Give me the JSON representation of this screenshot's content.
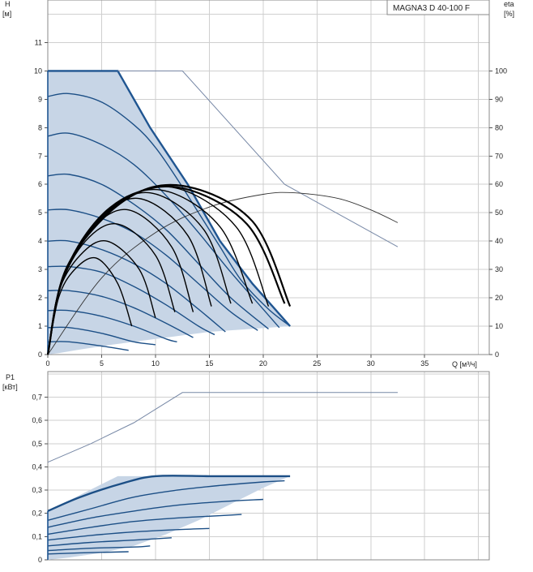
{
  "title": "MAGNA3 D 40-100 F",
  "colors": {
    "envelope_fill": "#c7d5e6",
    "envelope_line": "#1f5591",
    "curve_blue": "#1c4f86",
    "curve_black": "#000000",
    "thin_line": "#7788a6",
    "eta_line": "#333333",
    "grid": "#cfcfcf"
  },
  "chart_data": [
    {
      "type": "line",
      "name": "head",
      "ylabel": "H",
      "yunit": "[м]",
      "y2label": "eta",
      "y2unit": "[%]",
      "xlabel": "Q [м³/ч]",
      "xlim": [
        0,
        41
      ],
      "ylim": [
        0,
        12.5
      ],
      "y2lim": [
        0,
        125
      ],
      "xticks": [
        0,
        5,
        10,
        15,
        20,
        25,
        30,
        35
      ],
      "yticks": [
        0,
        1,
        2,
        3,
        4,
        5,
        6,
        7,
        8,
        9,
        10,
        11
      ],
      "y2ticks": [
        0,
        10,
        20,
        30,
        40,
        50,
        60,
        70,
        80,
        90,
        100
      ],
      "envelope": {
        "x": [
          0,
          6.5,
          9.5,
          13,
          16,
          19,
          22.5,
          15,
          10,
          6,
          3,
          1,
          0
        ],
        "y": [
          10,
          10,
          8,
          6,
          4,
          2.5,
          1,
          0.8,
          0.55,
          0.35,
          0.18,
          0.05,
          0
        ]
      },
      "head_curves": [
        {
          "x": [
            0,
            2,
            5,
            8,
            10,
            12,
            14,
            16,
            18,
            20.5,
            22.5
          ],
          "y": [
            9.1,
            9.2,
            8.9,
            8.1,
            7.3,
            6.2,
            5.0,
            3.8,
            2.6,
            1.6,
            1.0
          ]
        },
        {
          "x": [
            0,
            2,
            5,
            8,
            11,
            14,
            17,
            20,
            21.5
          ],
          "y": [
            7.7,
            7.8,
            7.4,
            6.7,
            5.6,
            4.3,
            2.9,
            1.6,
            0.95
          ]
        },
        {
          "x": [
            0,
            2,
            5,
            8,
            11,
            14,
            17,
            20.5
          ],
          "y": [
            6.3,
            6.35,
            6.0,
            5.3,
            4.4,
            3.2,
            2.0,
            0.9
          ]
        },
        {
          "x": [
            0,
            2,
            5,
            8,
            11,
            14,
            17,
            19.5
          ],
          "y": [
            5.1,
            5.1,
            4.8,
            4.3,
            3.5,
            2.5,
            1.5,
            0.85
          ]
        },
        {
          "x": [
            0,
            2,
            5,
            8,
            11,
            14,
            16.5
          ],
          "y": [
            4.0,
            4.0,
            3.7,
            3.2,
            2.5,
            1.6,
            0.8
          ]
        },
        {
          "x": [
            0,
            2,
            5,
            8,
            11,
            14,
            15.5
          ],
          "y": [
            3.1,
            3.1,
            2.9,
            2.4,
            1.75,
            1.0,
            0.7
          ]
        },
        {
          "x": [
            0,
            2,
            5,
            8,
            11,
            13.5
          ],
          "y": [
            2.25,
            2.25,
            2.05,
            1.65,
            1.1,
            0.6
          ]
        },
        {
          "x": [
            0,
            2,
            5,
            8,
            11,
            12
          ],
          "y": [
            1.55,
            1.55,
            1.35,
            1.0,
            0.55,
            0.45
          ]
        },
        {
          "x": [
            0,
            2,
            5,
            8,
            10
          ],
          "y": [
            0.95,
            0.95,
            0.75,
            0.45,
            0.35
          ]
        },
        {
          "x": [
            0,
            2,
            5,
            7.5
          ],
          "y": [
            0.45,
            0.45,
            0.3,
            0.15
          ]
        }
      ],
      "eta_curves": [
        {
          "x": [
            0,
            1,
            2.5,
            4.5,
            6.5,
            7.8
          ],
          "y": [
            0,
            20,
            30,
            34,
            25,
            10
          ]
        },
        {
          "x": [
            0,
            1,
            3,
            5.5,
            8.5,
            10
          ],
          "y": [
            0,
            22,
            35,
            40,
            30,
            13
          ]
        },
        {
          "x": [
            0,
            1.2,
            3.5,
            6.5,
            10,
            11.8
          ],
          "y": [
            0,
            24,
            40,
            46,
            35,
            15
          ]
        },
        {
          "x": [
            0,
            1.3,
            4,
            7.5,
            11.5,
            13.5
          ],
          "y": [
            0,
            26,
            44,
            51,
            38,
            15
          ]
        },
        {
          "x": [
            0,
            1.4,
            4.5,
            8.5,
            13,
            15.2
          ],
          "y": [
            0,
            27,
            47,
            55,
            42,
            17
          ]
        },
        {
          "x": [
            0,
            1.5,
            5,
            9.5,
            14.5,
            17
          ],
          "y": [
            0,
            28,
            49,
            57,
            44,
            18
          ]
        },
        {
          "x": [
            0,
            1.6,
            5.5,
            10.5,
            16,
            19
          ],
          "y": [
            0,
            29,
            51,
            58,
            45,
            18
          ]
        },
        {
          "x": [
            0,
            1.7,
            6,
            11.5,
            17.5,
            20.5
          ],
          "y": [
            0,
            30,
            52,
            59,
            45,
            17
          ]
        },
        {
          "x": [
            0,
            1.7,
            6.5,
            12,
            18.5,
            22
          ],
          "y": [
            0,
            30,
            53,
            59,
            46,
            18
          ]
        },
        {
          "x": [
            0,
            1.8,
            7,
            12.5,
            19,
            22.5
          ],
          "y": [
            0,
            31,
            54,
            59.5,
            47,
            17
          ]
        }
      ],
      "max_head_line": {
        "x": [
          6.5,
          12.5,
          22,
          32.5
        ],
        "y": [
          10,
          10,
          6,
          3.8
        ]
      },
      "max_eta_line": {
        "x": [
          0,
          5,
          10,
          15,
          20,
          23,
          27,
          30,
          32.5
        ],
        "y": [
          0,
          27,
          43,
          52,
          56.5,
          57,
          55,
          51,
          46.5
        ]
      }
    },
    {
      "type": "line",
      "name": "power",
      "ylabel": "P1",
      "yunit": "[кВт]",
      "xlim": [
        0,
        41
      ],
      "ylim": [
        0,
        0.81
      ],
      "yticks": [
        0,
        0.1,
        0.2,
        0.3,
        0.4,
        0.5,
        0.6,
        0.7
      ],
      "ytick_labels": [
        "0",
        "0,1",
        "0,2",
        "0,3",
        "0,4",
        "0,5",
        "0,6",
        "0,7"
      ],
      "envelope": {
        "x": [
          0,
          6.5,
          22.5,
          20,
          17,
          14,
          11,
          8,
          5,
          2,
          0
        ],
        "y": [
          0.21,
          0.36,
          0.36,
          0.31,
          0.24,
          0.17,
          0.11,
          0.06,
          0.03,
          0.01,
          0
        ]
      },
      "power_curves": [
        {
          "x": [
            0,
            3,
            7,
            10,
            15,
            19,
            22.5
          ],
          "y": [
            0.21,
            0.27,
            0.33,
            0.36,
            0.36,
            0.36,
            0.36
          ]
        },
        {
          "x": [
            0,
            4,
            8,
            12,
            16,
            20,
            22
          ],
          "y": [
            0.17,
            0.22,
            0.27,
            0.3,
            0.32,
            0.335,
            0.34
          ]
        },
        {
          "x": [
            0,
            4,
            8,
            12,
            16,
            20
          ],
          "y": [
            0.14,
            0.18,
            0.21,
            0.235,
            0.25,
            0.26
          ]
        },
        {
          "x": [
            0,
            4,
            8,
            12,
            16,
            18
          ],
          "y": [
            0.11,
            0.14,
            0.165,
            0.18,
            0.19,
            0.195
          ]
        },
        {
          "x": [
            0,
            4,
            8,
            12,
            15
          ],
          "y": [
            0.085,
            0.105,
            0.12,
            0.13,
            0.135
          ]
        },
        {
          "x": [
            0,
            4,
            8,
            11.5
          ],
          "y": [
            0.06,
            0.075,
            0.085,
            0.095
          ]
        },
        {
          "x": [
            0,
            4,
            8,
            9.5
          ],
          "y": [
            0.04,
            0.05,
            0.055,
            0.06
          ]
        },
        {
          "x": [
            0,
            3,
            6,
            7.5
          ],
          "y": [
            0.025,
            0.03,
            0.033,
            0.035
          ]
        }
      ],
      "max_power_line": {
        "x": [
          0,
          4,
          8,
          12.5,
          25,
          32.5
        ],
        "y": [
          0.42,
          0.5,
          0.59,
          0.72,
          0.72,
          0.72
        ]
      }
    }
  ]
}
